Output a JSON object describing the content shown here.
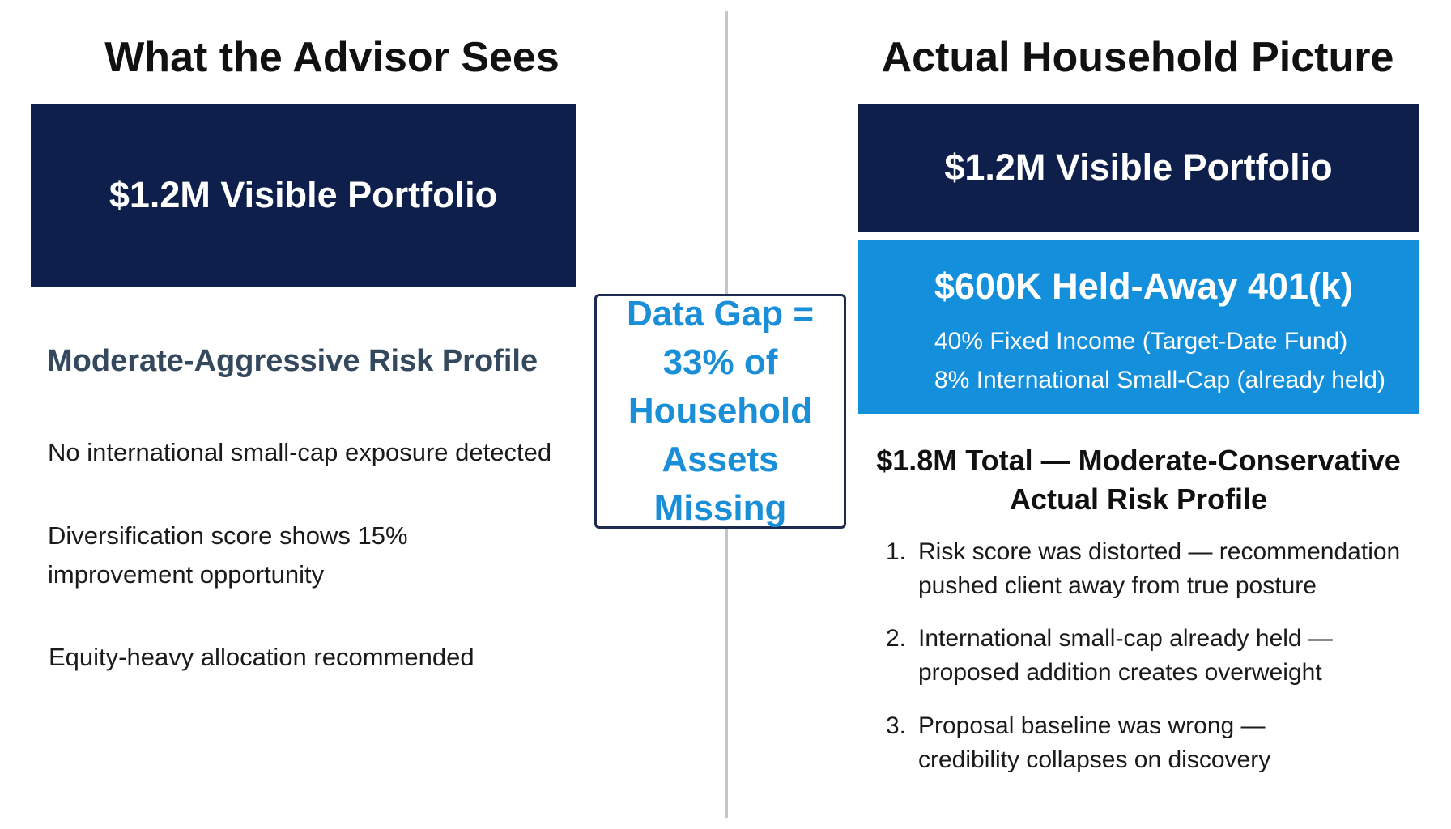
{
  "left": {
    "heading": "What the Advisor Sees",
    "portfolio_box": "$1.2M Visible Portfolio",
    "risk_profile": "Moderate-Aggressive Risk Profile",
    "items": [
      "No international small-cap exposure detected",
      "Diversification score shows 15%",
      "improvement opportunity",
      "Equity-heavy allocation recommended"
    ]
  },
  "center": {
    "lines": [
      "Data Gap =",
      "33% of",
      "Household",
      "Assets Missing"
    ]
  },
  "right": {
    "heading": "Actual Household Picture",
    "portfolio_box": "$1.2M Visible Portfolio",
    "held_away": {
      "title": "$600K Held-Away 401(k)",
      "lines": [
        "40% Fixed Income (Target-Date Fund)",
        "8% International Small-Cap (already held)"
      ]
    },
    "total": {
      "line1": "$1.8M Total — Moderate-Conservative",
      "line2": "Actual Risk Profile"
    },
    "findings": [
      {
        "num": "1.",
        "line1": "Risk score was distorted — recommendation",
        "line2": "pushed client away from true posture"
      },
      {
        "num": "2.",
        "line1": "International small-cap already held —",
        "line2": "proposed addition creates overweight"
      },
      {
        "num": "3.",
        "line1": "Proposal baseline was wrong —",
        "line2": "credibility collapses on discovery"
      }
    ]
  },
  "colors": {
    "navy": "#0d1f4a",
    "blue": "#148fdb",
    "gap_text": "#1a8fd8",
    "risk_profile_text": "#34495e",
    "divider": "#c4c6c9"
  }
}
